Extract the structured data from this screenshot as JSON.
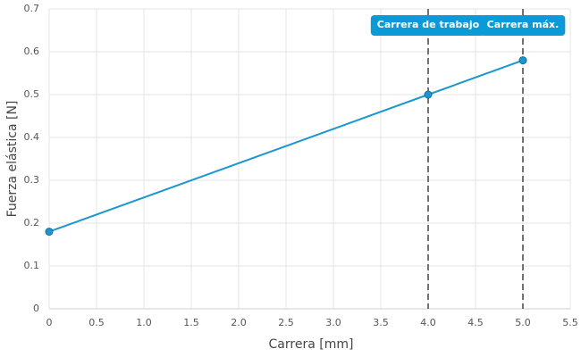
{
  "chart_data": {
    "type": "line",
    "x_label": "Carrera [mm]",
    "y_label": "Fuerza elástica [N]",
    "x": [
      0,
      4.0,
      5.0
    ],
    "series": [
      {
        "name": "Fuerza elástica",
        "color": "#1a96d0",
        "values": [
          0.18,
          0.5,
          0.58
        ]
      }
    ],
    "xlim": [
      0,
      5.5
    ],
    "xticks": [
      0,
      0.5,
      {
        "value": 1,
        "label": "1.0"
      },
      1.5,
      {
        "value": 2,
        "label": "2.0"
      },
      2.5,
      {
        "value": 3,
        "label": "3.0"
      },
      3.5,
      {
        "value": 4,
        "label": "4.0"
      },
      4.5,
      {
        "value": 5,
        "label": "5.0"
      },
      5.5
    ],
    "ylim": [
      0,
      0.7
    ],
    "yticks": [
      0,
      0.1,
      0.2,
      0.3,
      0.4,
      0.5,
      0.6,
      0.7
    ],
    "grid": true,
    "annotations": [
      {
        "x": 4,
        "label": "Carrera de trabajo"
      },
      {
        "x": 5,
        "label": "Carrera máx."
      }
    ],
    "annotation_color": "#0a9bd6"
  }
}
